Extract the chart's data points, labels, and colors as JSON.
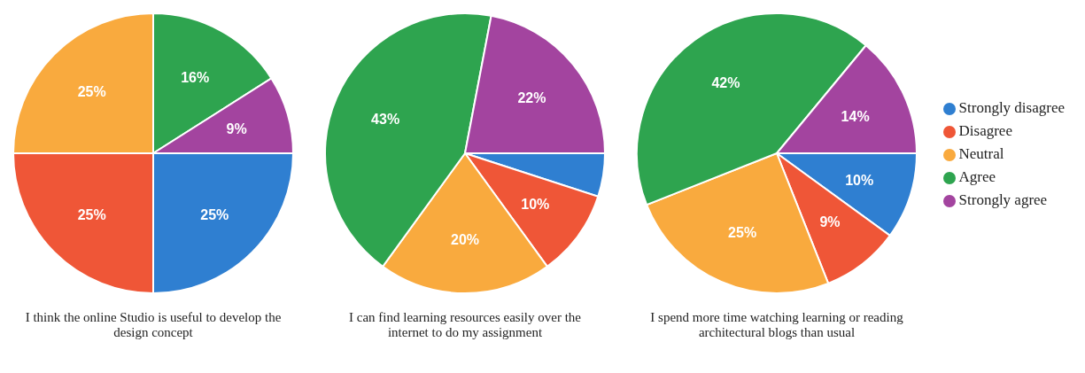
{
  "chart_data": [
    {
      "type": "pie",
      "title": "I think the online Studio is useful to develop the design concept",
      "categories": [
        null,
        null,
        null,
        null,
        null
      ],
      "values": [
        25,
        25,
        25,
        16,
        9
      ],
      "value_labels": [
        "25%",
        "25%",
        "25%",
        "16%",
        "9%"
      ],
      "colors": [
        "#2f7fd1",
        "#ef5637",
        "#f9aa3e",
        "#2ea44f",
        "#a3449f"
      ],
      "legend": false
    },
    {
      "type": "pie",
      "title": "I can find learning resources easily over the internet to do my assignment",
      "categories": [
        null,
        null,
        null,
        null,
        null
      ],
      "values": [
        5,
        10,
        20,
        43,
        22
      ],
      "value_labels": [
        null,
        "10%",
        "20%",
        "43%",
        "22%"
      ],
      "colors": [
        "#2f7fd1",
        "#ef5637",
        "#f9aa3e",
        "#2ea44f",
        "#a3449f"
      ],
      "legend": false
    },
    {
      "type": "pie",
      "title": "I spend more time watching learning or reading architectural blogs than usual",
      "categories": [
        "Strongly disagree",
        "Disagree",
        "Neutral",
        "Agree",
        "Strongly agree"
      ],
      "values": [
        10,
        9,
        25,
        42,
        14
      ],
      "value_labels": [
        "10%",
        "9%",
        "25%",
        "42%",
        "14%"
      ],
      "colors": [
        "#2f7fd1",
        "#ef5637",
        "#f9aa3e",
        "#2ea44f",
        "#a3449f"
      ],
      "legend": "right"
    }
  ]
}
